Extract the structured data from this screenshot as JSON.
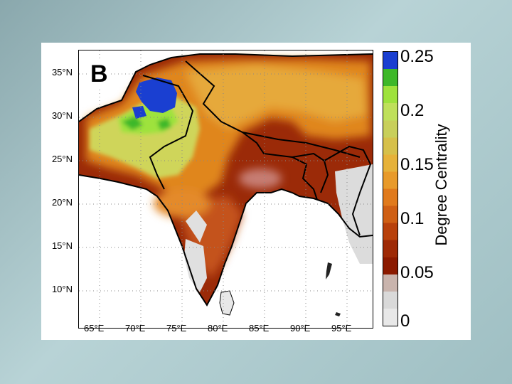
{
  "panel_label": "B",
  "map": {
    "lat_labels": [
      "35°N",
      "30°N",
      "25°N",
      "20°N",
      "15°N",
      "10°N"
    ],
    "lon_labels": [
      "65°E",
      "70°E",
      "75°E",
      "80°E",
      "85°E",
      "90°E",
      "95°E"
    ],
    "lat_values": [
      35,
      30,
      25,
      20,
      15,
      10
    ],
    "lon_values": [
      65,
      70,
      75,
      80,
      85,
      90,
      95
    ],
    "lon_range": [
      62.5,
      98
    ],
    "lat_range": [
      6,
      37.8
    ],
    "grid": "dotted",
    "region": "South Asia"
  },
  "colorbar": {
    "title": "Degree Centrality",
    "ticks": [
      "0.25",
      "0.2",
      "0.15",
      "0.1",
      "0.05",
      "0"
    ],
    "tick_values": [
      0.25,
      0.2,
      0.15,
      0.1,
      0.05,
      0
    ],
    "range": [
      0,
      0.25
    ],
    "colors": [
      "#e8e8e8",
      "#d9d9d9",
      "#c9b4ad",
      "#8b1a00",
      "#9e2a06",
      "#b8410b",
      "#cf5f14",
      "#e07a1c",
      "#e89a2a",
      "#e6b23a",
      "#d6c04a",
      "#c8cf5a",
      "#bfe05a",
      "#9ee23c",
      "#3db829",
      "#1a3fd1"
    ]
  }
}
